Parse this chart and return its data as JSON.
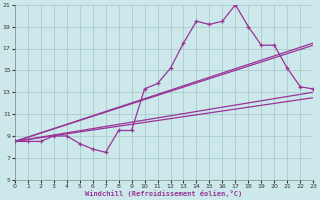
{
  "background_color": "#cce8ea",
  "grid_color": "#aacccc",
  "line_color": "#993399",
  "xlabel": "Windchill (Refroidissement éolien,°C)",
  "xlim": [
    0,
    23
  ],
  "ylim": [
    5,
    21
  ],
  "yticks": [
    5,
    7,
    9,
    11,
    13,
    15,
    17,
    19,
    21
  ],
  "xticks": [
    0,
    1,
    2,
    3,
    4,
    5,
    6,
    7,
    8,
    9,
    10,
    11,
    12,
    13,
    14,
    15,
    16,
    17,
    18,
    19,
    20,
    21,
    22,
    23
  ],
  "curve_x": [
    0,
    1,
    2,
    3,
    4,
    5,
    6,
    7,
    8,
    9,
    10,
    11,
    12,
    13,
    14,
    15,
    16,
    17,
    18,
    19,
    20,
    21,
    22,
    23
  ],
  "curve_y": [
    8.5,
    8.5,
    8.5,
    9.0,
    9.0,
    8.3,
    7.8,
    7.5,
    9.5,
    9.5,
    13.3,
    13.8,
    15.2,
    17.5,
    19.5,
    19.2,
    19.5,
    21.0,
    19.0,
    17.3,
    17.3,
    15.2,
    13.5,
    13.3
  ],
  "straight_lines": [
    {
      "x": [
        0,
        23
      ],
      "y": [
        8.5,
        12.5
      ]
    },
    {
      "x": [
        0,
        23
      ],
      "y": [
        8.5,
        13.0
      ]
    },
    {
      "x": [
        0,
        23
      ],
      "y": [
        8.5,
        17.3
      ]
    },
    {
      "x": [
        0,
        23
      ],
      "y": [
        8.5,
        17.5
      ]
    }
  ]
}
